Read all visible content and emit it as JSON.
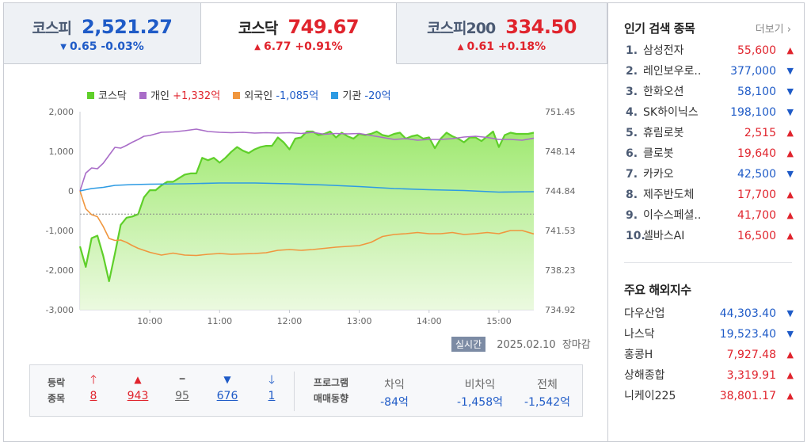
{
  "tabs": [
    {
      "name": "코스피",
      "value": "2,521.27",
      "dir": "down",
      "arrow": "▼",
      "change": "0.65 -0.03%",
      "active": false
    },
    {
      "name": "코스닥",
      "value": "749.67",
      "dir": "up",
      "arrow": "▲",
      "change": "6.77 +0.91%",
      "active": true
    },
    {
      "name": "코스피200",
      "value": "334.50",
      "dir": "up",
      "arrow": "▲",
      "change": "0.61 +0.18%",
      "active": false
    }
  ],
  "legend": [
    {
      "label": "코스닥",
      "value": "",
      "color": "#5fcf2a"
    },
    {
      "label": "개인",
      "value": "+1,332억",
      "color": "#a96dc8",
      "valueColor": "#e0242d"
    },
    {
      "label": "외국인",
      "value": "-1,085억",
      "color": "#f0963e",
      "valueColor": "#1f5bc7"
    },
    {
      "label": "기관",
      "value": "-20억",
      "color": "#2d9be3",
      "valueColor": "#1f5bc7"
    }
  ],
  "chart_data": {
    "type": "area",
    "x_ticks": [
      "10:00",
      "11:00",
      "12:00",
      "13:00",
      "14:00",
      "15:00"
    ],
    "y_left_ticks": [
      "2,000",
      "1,000",
      "0",
      "-1,000",
      "-2,000",
      "-3,000"
    ],
    "y_left_lim": [
      -3000,
      2000
    ],
    "y_right_ticks": [
      "751.45",
      "748.14",
      "744.84",
      "741.53",
      "738.23",
      "734.92"
    ],
    "y_right_lim": [
      734.92,
      751.45
    ],
    "prev_close": 742.9,
    "grid": false,
    "legend_position": "top-left",
    "x_range": [
      "09:00",
      "15:30"
    ],
    "series": [
      {
        "name": "코스닥",
        "color": "#5fcf2a",
        "axis": "right",
        "x": [
          "09:00",
          "09:05",
          "09:10",
          "09:15",
          "09:20",
          "09:25",
          "09:30",
          "09:35",
          "09:40",
          "09:45",
          "09:50",
          "09:55",
          "10:00",
          "10:05",
          "10:10",
          "10:15",
          "10:20",
          "10:25",
          "10:30",
          "10:35",
          "10:40",
          "10:45",
          "10:50",
          "10:55",
          "11:00",
          "11:05",
          "11:10",
          "11:15",
          "11:20",
          "11:25",
          "11:30",
          "11:35",
          "11:40",
          "11:45",
          "11:50",
          "11:55",
          "12:00",
          "12:05",
          "12:10",
          "12:15",
          "12:20",
          "12:25",
          "12:30",
          "12:35",
          "12:40",
          "12:45",
          "12:50",
          "12:55",
          "13:00",
          "13:05",
          "13:10",
          "13:15",
          "13:20",
          "13:25",
          "13:30",
          "13:35",
          "13:40",
          "13:45",
          "13:50",
          "13:55",
          "14:00",
          "14:05",
          "14:10",
          "14:15",
          "14:20",
          "14:25",
          "14:30",
          "14:35",
          "14:40",
          "14:45",
          "14:50",
          "14:55",
          "15:00",
          "15:05",
          "15:10",
          "15:15",
          "15:20",
          "15:25",
          "15:30"
        ],
        "values": [
          740.2,
          738.5,
          740.9,
          741.1,
          739.4,
          737.3,
          739.6,
          742.0,
          742.6,
          742.7,
          742.9,
          744.3,
          744.9,
          744.9,
          745.3,
          745.6,
          745.6,
          745.9,
          746.2,
          746.3,
          746.3,
          747.6,
          747.4,
          747.6,
          747.2,
          747.6,
          748.1,
          748.5,
          748.2,
          748.0,
          748.3,
          748.5,
          748.6,
          748.6,
          749.3,
          748.9,
          748.3,
          749.2,
          749.3,
          749.8,
          749.8,
          749.5,
          749.6,
          749.8,
          749.3,
          749.7,
          749.4,
          749.2,
          749.6,
          749.5,
          749.6,
          749.8,
          749.5,
          749.4,
          749.6,
          749.7,
          749.2,
          749.4,
          749.5,
          749.2,
          749.3,
          748.4,
          749.2,
          749.7,
          749.4,
          749.2,
          748.9,
          749.3,
          749.3,
          749.0,
          749.4,
          749.8,
          748.5,
          749.5,
          749.7,
          749.6,
          749.6,
          749.6,
          749.7
        ]
      },
      {
        "name": "개인",
        "color": "#a96dc8",
        "axis": "left",
        "x": [
          "09:00",
          "09:05",
          "09:10",
          "09:15",
          "09:20",
          "09:25",
          "09:30",
          "09:35",
          "09:40",
          "09:45",
          "09:50",
          "09:55",
          "10:00",
          "10:10",
          "10:20",
          "10:30",
          "10:40",
          "10:50",
          "11:00",
          "11:10",
          "11:20",
          "11:30",
          "11:40",
          "11:50",
          "12:00",
          "12:10",
          "12:20",
          "12:30",
          "12:40",
          "12:50",
          "13:00",
          "13:10",
          "13:20",
          "13:30",
          "13:40",
          "13:50",
          "14:00",
          "14:10",
          "14:20",
          "14:30",
          "14:40",
          "14:50",
          "15:00",
          "15:10",
          "15:20",
          "15:30"
        ],
        "values": [
          0,
          450,
          580,
          560,
          700,
          900,
          1100,
          1080,
          1150,
          1230,
          1300,
          1380,
          1400,
          1480,
          1490,
          1520,
          1560,
          1500,
          1480,
          1470,
          1480,
          1460,
          1470,
          1460,
          1470,
          1450,
          1480,
          1430,
          1450,
          1440,
          1450,
          1400,
          1350,
          1300,
          1320,
          1280,
          1300,
          1300,
          1320,
          1360,
          1380,
          1350,
          1300,
          1300,
          1280,
          1332
        ]
      },
      {
        "name": "외국인",
        "color": "#f0963e",
        "axis": "left",
        "x": [
          "09:00",
          "09:05",
          "09:10",
          "09:15",
          "09:20",
          "09:25",
          "09:30",
          "09:35",
          "09:40",
          "09:45",
          "09:50",
          "09:55",
          "10:00",
          "10:10",
          "10:20",
          "10:30",
          "10:40",
          "10:50",
          "11:00",
          "11:10",
          "11:20",
          "11:30",
          "11:40",
          "11:50",
          "12:00",
          "12:10",
          "12:20",
          "12:30",
          "12:40",
          "12:50",
          "13:00",
          "13:10",
          "13:20",
          "13:30",
          "13:40",
          "13:50",
          "14:00",
          "14:10",
          "14:20",
          "14:30",
          "14:40",
          "14:50",
          "15:00",
          "15:10",
          "15:20",
          "15:30"
        ],
        "values": [
          0,
          -450,
          -600,
          -650,
          -900,
          -1200,
          -1250,
          -1240,
          -1300,
          -1380,
          -1450,
          -1500,
          -1550,
          -1620,
          -1570,
          -1620,
          -1630,
          -1600,
          -1580,
          -1600,
          -1590,
          -1580,
          -1560,
          -1500,
          -1480,
          -1500,
          -1480,
          -1450,
          -1420,
          -1400,
          -1380,
          -1300,
          -1150,
          -1100,
          -1080,
          -1050,
          -1080,
          -1080,
          -1050,
          -1100,
          -1080,
          -1050,
          -1080,
          -1000,
          -1000,
          -1085
        ]
      },
      {
        "name": "기관",
        "color": "#2d9be3",
        "axis": "left",
        "x": [
          "09:00",
          "09:10",
          "09:20",
          "09:30",
          "09:45",
          "10:00",
          "10:30",
          "11:00",
          "11:30",
          "12:00",
          "12:30",
          "13:00",
          "13:30",
          "14:00",
          "14:30",
          "15:00",
          "15:30"
        ],
        "values": [
          0,
          60,
          90,
          140,
          160,
          170,
          180,
          200,
          200,
          180,
          150,
          110,
          60,
          30,
          10,
          -30,
          -20
        ]
      }
    ]
  },
  "status": {
    "realtime": "실시간",
    "date": "2025.02.10",
    "state": "장마감"
  },
  "breadth": {
    "label1": "등락",
    "label2": "종목",
    "items": [
      {
        "icon": "🡑",
        "count": "8",
        "color": "#e0242d"
      },
      {
        "icon": "▲",
        "count": "943",
        "color": "#e0242d"
      },
      {
        "icon": "━",
        "count": "95",
        "color": "#666666"
      },
      {
        "icon": "▼",
        "count": "676",
        "color": "#1f5bc7"
      },
      {
        "icon": "🡓",
        "count": "1",
        "color": "#1f5bc7"
      }
    ]
  },
  "program": {
    "label1": "프로그램",
    "label2": "매매동향",
    "items": [
      {
        "label": "차익",
        "value": "-84억"
      },
      {
        "label": "비차익",
        "value": "-1,458억"
      },
      {
        "label": "전체",
        "value": "-1,542억"
      }
    ]
  },
  "popular": {
    "title": "인기 검색 종목",
    "more": "더보기",
    "items": [
      {
        "rank": "1.",
        "name": "삼성전자",
        "price": "55,600",
        "dir": "up"
      },
      {
        "rank": "2.",
        "name": "레인보우로..",
        "price": "377,000",
        "dir": "down"
      },
      {
        "rank": "3.",
        "name": "한화오션",
        "price": "58,100",
        "dir": "down"
      },
      {
        "rank": "4.",
        "name": "SK하이닉스",
        "price": "198,100",
        "dir": "down"
      },
      {
        "rank": "5.",
        "name": "휴림로봇",
        "price": "2,515",
        "dir": "up"
      },
      {
        "rank": "6.",
        "name": "클로봇",
        "price": "19,640",
        "dir": "up"
      },
      {
        "rank": "7.",
        "name": "카카오",
        "price": "42,500",
        "dir": "down"
      },
      {
        "rank": "8.",
        "name": "제주반도체",
        "price": "17,700",
        "dir": "up"
      },
      {
        "rank": "9.",
        "name": "이수스페셜..",
        "price": "41,700",
        "dir": "up"
      },
      {
        "rank": "10.",
        "name": "셀바스AI",
        "price": "16,500",
        "dir": "up"
      }
    ]
  },
  "global": {
    "title": "주요 해외지수",
    "items": [
      {
        "name": "다우산업",
        "value": "44,303.40",
        "dir": "down"
      },
      {
        "name": "나스닥",
        "value": "19,523.40",
        "dir": "down"
      },
      {
        "name": "홍콩H",
        "value": "7,927.48",
        "dir": "up"
      },
      {
        "name": "상해종합",
        "value": "3,319.91",
        "dir": "up"
      },
      {
        "name": "니케이225",
        "value": "38,801.17",
        "dir": "up"
      }
    ]
  }
}
